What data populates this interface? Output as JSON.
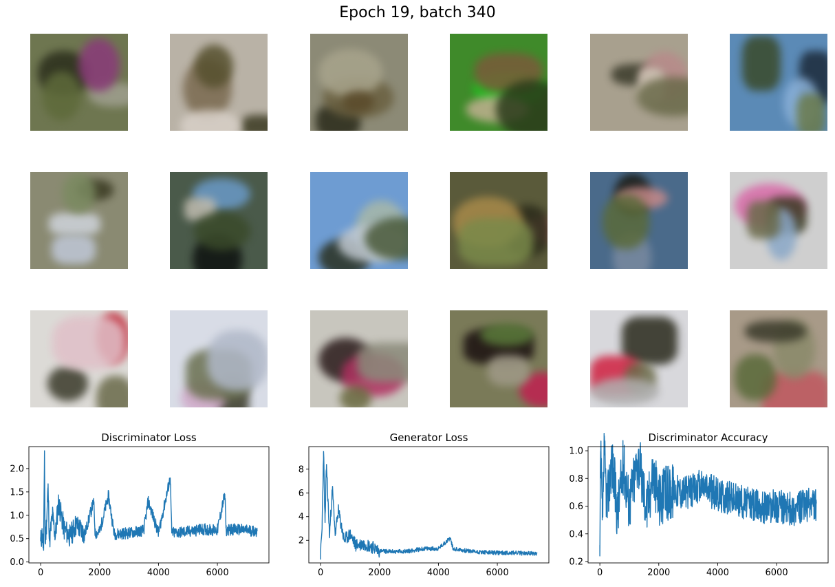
{
  "figure": {
    "title": "Epoch 19, batch 340"
  },
  "samples": {
    "rows": 3,
    "cols": 6,
    "tiles": [
      {
        "base": "#6e7650",
        "blobs": [
          "#2b2e1c",
          "#a0a090",
          "#8a3a7a",
          "#5e6a3a"
        ]
      },
      {
        "base": "#b9b2a6",
        "blobs": [
          "#3b3a22",
          "#7a6a50",
          "#d8d0c8",
          "#56502e"
        ]
      },
      {
        "base": "#8c8a76",
        "blobs": [
          "#2a2a1a",
          "#6a6040",
          "#a8a48c",
          "#5a4a2a"
        ]
      },
      {
        "base": "#3f8a2a",
        "blobs": [
          "#22c022",
          "#7a5a3a",
          "#c0b090",
          "#2a3a1a"
        ]
      },
      {
        "base": "#a8a08e",
        "blobs": [
          "#3a3a2a",
          "#b88a8a",
          "#d0c8b8",
          "#6a6a4a"
        ]
      },
      {
        "base": "#5b8ab6",
        "blobs": [
          "#1c2a3a",
          "#8ab0d8",
          "#3a4a2a",
          "#6a7a4a"
        ]
      },
      {
        "base": "#8a8a72",
        "blobs": [
          "#cfd4dc",
          "#c0c8d8",
          "#3a3a22",
          "#7a8a60"
        ]
      },
      {
        "base": "#4a5a4a",
        "blobs": [
          "#0e1210",
          "#6a9ac8",
          "#c0bcb0",
          "#3a4a2a"
        ]
      },
      {
        "base": "#6e9cd2",
        "blobs": [
          "#2a3020",
          "#a8b8a8",
          "#c0c8d0",
          "#4a5a3a"
        ]
      },
      {
        "base": "#5a5a3a",
        "blobs": [
          "#c07a70",
          "#2a2a1a",
          "#a88a4a",
          "#7a8a4a"
        ]
      },
      {
        "base": "#4a6a8a",
        "blobs": [
          "#1a1a12",
          "#c88a8a",
          "#7a8aa0",
          "#5a6a3a"
        ]
      },
      {
        "base": "#cfcfcf",
        "blobs": [
          "#d86aa8",
          "#3a3a22",
          "#8aa8c8",
          "#6a6a4a"
        ]
      },
      {
        "base": "#dcdad6",
        "blobs": [
          "#c02030",
          "#3a3a2a",
          "#6a6a4a",
          "#e0c0c8"
        ]
      },
      {
        "base": "#d8dce6",
        "blobs": [
          "#3a3a28",
          "#d0a8c8",
          "#6a7050",
          "#b0b8c8"
        ]
      },
      {
        "base": "#c8c6be",
        "blobs": [
          "#2a1a1a",
          "#b03060",
          "#6a6a40",
          "#8a8a7a"
        ]
      },
      {
        "base": "#7a7a58",
        "blobs": [
          "#1a1010",
          "#c02050",
          "#5a7a3a",
          "#a09a88"
        ]
      },
      {
        "base": "#d8d8dc",
        "blobs": [
          "#2a2a1c",
          "#d02040",
          "#6a6a48",
          "#b0b0b0"
        ]
      },
      {
        "base": "#a89a88",
        "blobs": [
          "#c05860",
          "#5a6a3a",
          "#8a8a6a",
          "#3a3a2a"
        ]
      }
    ]
  },
  "chart_data": [
    {
      "type": "line",
      "title": "Discriminator Loss",
      "color": "#1f77b4",
      "xlim": [
        -400,
        7750
      ],
      "ylim": [
        -0.02,
        2.47
      ],
      "xticks": [
        0,
        2000,
        4000,
        6000
      ],
      "yticks": [
        0.0,
        0.5,
        1.0,
        1.5,
        2.0
      ],
      "ytick_labels": [
        "0.0",
        "0.5",
        "1.0",
        "1.5",
        "2.0"
      ],
      "x": [
        0,
        50,
        100,
        130,
        150,
        200,
        250,
        300,
        400,
        500,
        600,
        800,
        1000,
        1200,
        1500,
        1800,
        1850,
        2000,
        2300,
        2500,
        3000,
        3500,
        3650,
        4000,
        4400,
        4450,
        5000,
        5500,
        6000,
        6250,
        6300,
        6500,
        7000,
        7350
      ],
      "y": [
        0.45,
        0.6,
        0.25,
        2.38,
        0.4,
        0.85,
        1.6,
        0.45,
        1.0,
        0.55,
        1.28,
        0.7,
        0.55,
        0.8,
        0.6,
        1.3,
        0.6,
        0.65,
        1.42,
        0.6,
        0.62,
        0.68,
        1.3,
        0.62,
        1.8,
        0.62,
        0.65,
        0.7,
        0.68,
        1.45,
        0.68,
        0.7,
        0.68,
        0.66
      ]
    },
    {
      "type": "line",
      "title": "Generator Loss",
      "color": "#1f77b4",
      "xlim": [
        -400,
        7750
      ],
      "ylim": [
        0.1,
        9.9
      ],
      "xticks": [
        0,
        2000,
        4000,
        6000
      ],
      "yticks": [
        2,
        4,
        6,
        8
      ],
      "ytick_labels": [
        "2",
        "4",
        "6",
        "8"
      ],
      "x": [
        0,
        50,
        100,
        150,
        200,
        300,
        400,
        500,
        600,
        800,
        1000,
        1200,
        1500,
        1800,
        2000,
        2500,
        3000,
        3500,
        4000,
        4400,
        4500,
        5000,
        5500,
        6000,
        6500,
        7000,
        7350
      ],
      "y": [
        0.8,
        3.0,
        9.5,
        3.5,
        8.4,
        2.4,
        6.3,
        2.5,
        4.5,
        2.0,
        2.5,
        1.6,
        1.7,
        1.4,
        1.1,
        1.05,
        1.1,
        1.3,
        1.3,
        2.2,
        1.3,
        1.1,
        1.0,
        0.95,
        0.95,
        0.9,
        0.9
      ]
    },
    {
      "type": "line",
      "title": "Discriminator Accuracy",
      "color": "#1f77b4",
      "xlim": [
        -400,
        7750
      ],
      "ylim": [
        0.19,
        1.03
      ],
      "xticks": [
        0,
        2000,
        4000,
        6000
      ],
      "yticks": [
        0.2,
        0.4,
        0.6,
        0.8,
        1.0
      ],
      "ytick_labels": [
        "0.2",
        "0.4",
        "0.6",
        "0.8",
        "1.0"
      ],
      "x": [
        0,
        30,
        80,
        150,
        250,
        400,
        600,
        800,
        1000,
        1300,
        1600,
        1800,
        2000,
        2500,
        3000,
        3500,
        4000,
        4500,
        5000,
        5500,
        6000,
        6500,
        7000,
        7350
      ],
      "y": [
        0.24,
        0.99,
        0.5,
        0.97,
        0.6,
        0.95,
        0.55,
        0.9,
        0.62,
        0.95,
        0.58,
        0.85,
        0.65,
        0.72,
        0.7,
        0.75,
        0.68,
        0.66,
        0.62,
        0.6,
        0.6,
        0.58,
        0.6,
        0.62
      ]
    }
  ]
}
